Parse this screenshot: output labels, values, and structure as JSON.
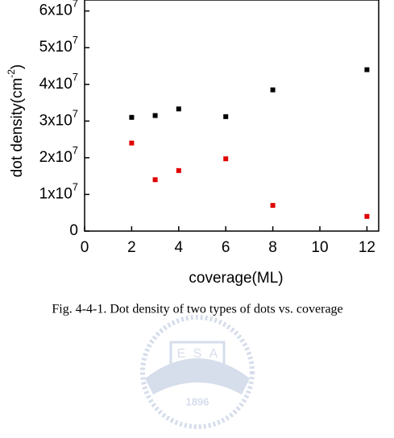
{
  "chart_data": {
    "type": "scatter",
    "x_label": "coverage(ML)",
    "y_label": {
      "text": "dot density(cm",
      "superscript": "-2",
      "suffix": ")"
    },
    "xlim": [
      0,
      12.5
    ],
    "xticks": [
      0,
      2,
      4,
      6,
      8,
      10,
      12
    ],
    "ylim": [
      0,
      63000000
    ],
    "yticks": [
      0,
      {
        "value": 10000000,
        "label": "1x10",
        "exponent": "7"
      },
      {
        "value": 20000000,
        "label": "2x10",
        "exponent": "7"
      },
      {
        "value": 30000000,
        "label": "3x10",
        "exponent": "7"
      },
      {
        "value": 40000000,
        "label": "4x10",
        "exponent": "7"
      },
      {
        "value": 50000000,
        "label": "5x10",
        "exponent": "7"
      },
      {
        "value": 60000000,
        "label": "6x10",
        "exponent": "7"
      }
    ],
    "series": [
      {
        "color": "#000000",
        "x": [
          2,
          3,
          4,
          6,
          8,
          12
        ],
        "values": [
          31000000,
          31500000,
          33300000,
          31200000,
          38500000,
          44000000
        ]
      },
      {
        "color": "#e00000",
        "x": [
          2,
          3,
          4,
          6,
          8,
          12
        ],
        "values": [
          24000000,
          14000000,
          16500000,
          19700000,
          7000000,
          4000000
        ]
      }
    ]
  },
  "caption": "Fig. 4-4-1. Dot density of two types of dots vs. coverage",
  "watermark": {
    "letters": [
      "E",
      "S",
      "A"
    ],
    "year": "1896"
  }
}
